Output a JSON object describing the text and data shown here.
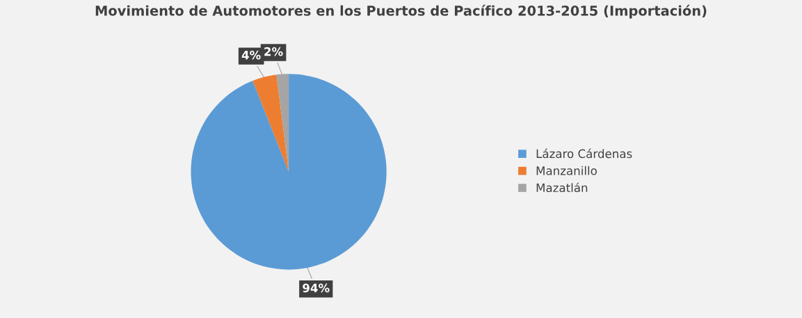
{
  "chart_data": {
    "type": "pie",
    "title": "Movimiento de Automotores en los Puertos de Pacífico 2013-2015 (Importación)",
    "categories": [
      "Lázaro Cárdenas",
      "Manzanillo",
      "Mazatlán"
    ],
    "values": [
      94,
      4,
      2
    ],
    "colors": [
      "#5b9bd5",
      "#ed7d31",
      "#a5a5a5"
    ],
    "value_labels": [
      "94%",
      "4%",
      "2%"
    ],
    "legend": "right"
  }
}
